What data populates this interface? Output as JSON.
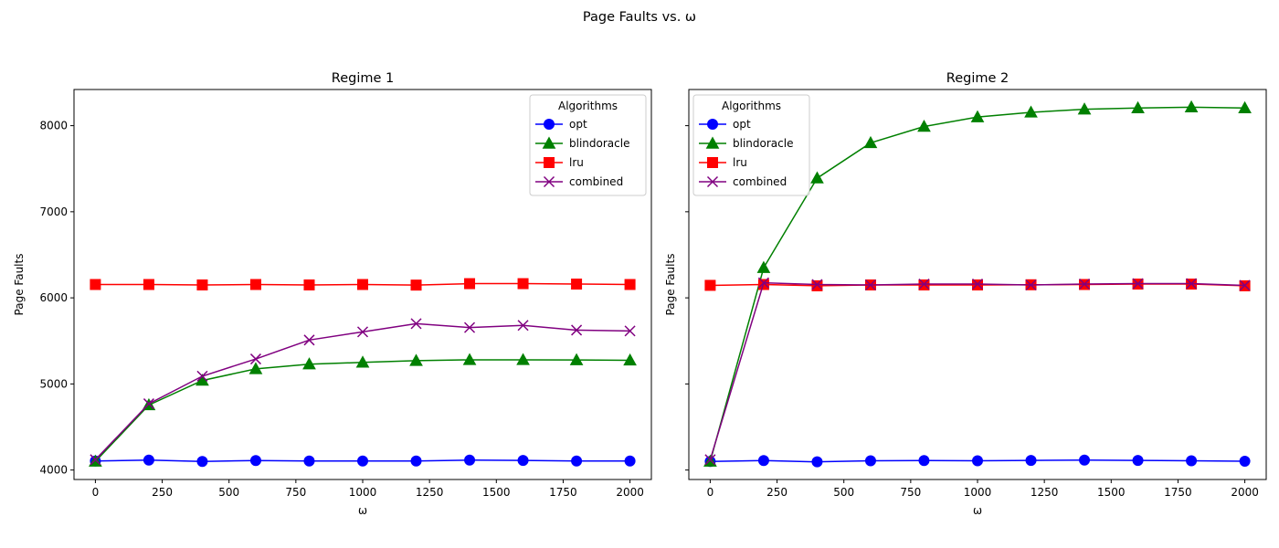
{
  "figure": {
    "suptitle": "Page Faults vs. ω"
  },
  "chart_data": [
    {
      "type": "line",
      "title": "Regime 1",
      "xlabel": "ω",
      "ylabel": "Page Faults",
      "xlim": [
        -80,
        2080
      ],
      "ylim": [
        3890,
        8420
      ],
      "xticks": [
        0,
        250,
        500,
        750,
        1000,
        1250,
        1500,
        1750,
        2000
      ],
      "yticks": [
        4000,
        5000,
        6000,
        7000,
        8000
      ],
      "show_ytick_labels": true,
      "grid": false,
      "legend": {
        "title": "Algorithms",
        "placement": "upper right"
      },
      "x": [
        0,
        200,
        400,
        600,
        800,
        1000,
        1200,
        1400,
        1600,
        1800,
        2000
      ],
      "series": [
        {
          "name": "opt",
          "color": "#0000ff",
          "marker": "circle",
          "values": [
            4105,
            4115,
            4100,
            4110,
            4105,
            4105,
            4105,
            4115,
            4112,
            4105,
            4105
          ]
        },
        {
          "name": "blindoracle",
          "color": "#008000",
          "marker": "triangle",
          "values": [
            4100,
            4755,
            5040,
            5175,
            5230,
            5250,
            5270,
            5280,
            5280,
            5278,
            5275
          ]
        },
        {
          "name": "lru",
          "color": "#ff0000",
          "marker": "square",
          "values": [
            6155,
            6155,
            6150,
            6155,
            6150,
            6155,
            6148,
            6165,
            6165,
            6160,
            6155
          ]
        },
        {
          "name": "combined",
          "color": "#800080",
          "marker": "x",
          "values": [
            4120,
            4770,
            5090,
            5290,
            5510,
            5605,
            5700,
            5655,
            5680,
            5625,
            5615
          ]
        }
      ]
    },
    {
      "type": "line",
      "title": "Regime 2",
      "xlabel": "ω",
      "ylabel": "Page Faults",
      "xlim": [
        -80,
        2080
      ],
      "ylim": [
        3890,
        8420
      ],
      "xticks": [
        0,
        250,
        500,
        750,
        1000,
        1250,
        1500,
        1750,
        2000
      ],
      "yticks": [
        4000,
        5000,
        6000,
        7000,
        8000
      ],
      "show_ytick_labels": false,
      "grid": false,
      "legend": {
        "title": "Algorithms",
        "placement": "upper left"
      },
      "x": [
        0,
        200,
        400,
        600,
        800,
        1000,
        1200,
        1400,
        1600,
        1800,
        2000
      ],
      "series": [
        {
          "name": "opt",
          "color": "#0000ff",
          "marker": "circle",
          "values": [
            4100,
            4110,
            4095,
            4108,
            4110,
            4108,
            4112,
            4115,
            4112,
            4108,
            4102
          ]
        },
        {
          "name": "blindoracle",
          "color": "#008000",
          "marker": "triangle",
          "values": [
            4100,
            6350,
            7390,
            7800,
            7990,
            8100,
            8155,
            8190,
            8205,
            8215,
            8205
          ]
        },
        {
          "name": "lru",
          "color": "#ff0000",
          "marker": "square",
          "values": [
            6145,
            6155,
            6140,
            6150,
            6150,
            6150,
            6152,
            6155,
            6160,
            6160,
            6140
          ]
        },
        {
          "name": "combined",
          "color": "#800080",
          "marker": "x",
          "values": [
            4120,
            6175,
            6155,
            6150,
            6160,
            6160,
            6150,
            6160,
            6165,
            6165,
            6145
          ]
        }
      ]
    }
  ]
}
